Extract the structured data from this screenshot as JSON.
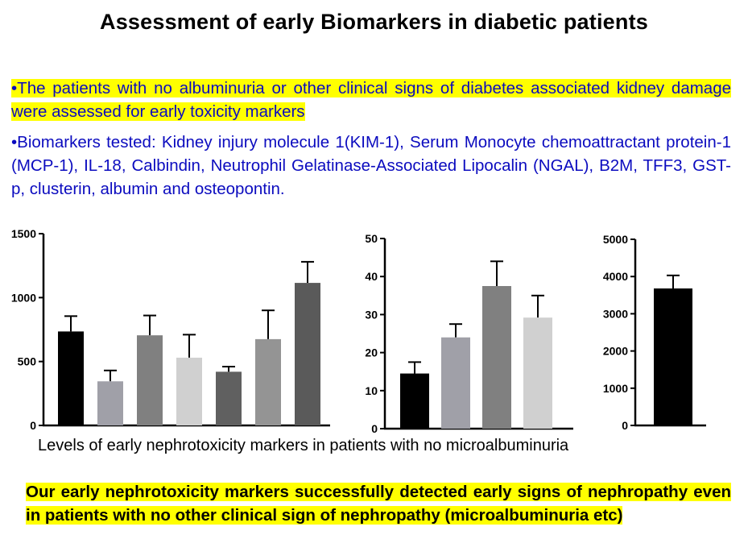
{
  "slide": {
    "title": "Assessment of early Biomarkers in diabetic patients",
    "bullet1": "•The patients with no albuminuria or other clinical signs of diabetes associated kidney damage were assessed for early toxicity markers",
    "bullet2": "•Biomarkers tested: Kidney injury molecule 1(KIM-1), Serum Monocyte chemoattractant protein-1 (MCP-1), IL-18, Calbindin, Neutrophil Gelatinase-Associated Lipocalin (NGAL), B2M, TFF3, GST-p, clusterin, albumin and osteopontin.",
    "caption": "Levels of early nephrotoxicity markers in patients with no microalbuminuria",
    "conclusion": "Our early nephrotoxicity markers successfully detected early signs of nephropathy even in patients with no other clinical sign of nephropathy (microalbuminuria etc)",
    "highlight_color": "#ffff00",
    "text_color": "#0b0bbf"
  },
  "chart_data": [
    {
      "type": "bar",
      "ylim": [
        0,
        1500
      ],
      "yticks": [
        "0",
        "500",
        "1000",
        "1500"
      ],
      "values": [
        735,
        345,
        705,
        530,
        420,
        675,
        1115
      ],
      "errors": [
        120,
        85,
        155,
        180,
        40,
        225,
        165
      ],
      "colors": [
        "#000000",
        "#a0a0a8",
        "#808080",
        "#d0d0d0",
        "#606060",
        "#949494",
        "#5a5a5a"
      ],
      "grid": false
    },
    {
      "type": "bar",
      "ylim": [
        0,
        50
      ],
      "yticks": [
        "0",
        "10",
        "20",
        "30",
        "40",
        "50"
      ],
      "values": [
        14.5,
        24,
        37.5,
        29.2
      ],
      "errors": [
        3,
        3.5,
        6.5,
        5.8
      ],
      "colors": [
        "#000000",
        "#a0a0a8",
        "#808080",
        "#d0d0d0"
      ],
      "grid": false
    },
    {
      "type": "bar",
      "ylim": [
        0,
        5000
      ],
      "yticks": [
        "0",
        "1000",
        "2000",
        "3000",
        "4000",
        "5000"
      ],
      "values": [
        3680
      ],
      "errors": [
        350
      ],
      "colors": [
        "#000000"
      ],
      "grid": false
    }
  ]
}
